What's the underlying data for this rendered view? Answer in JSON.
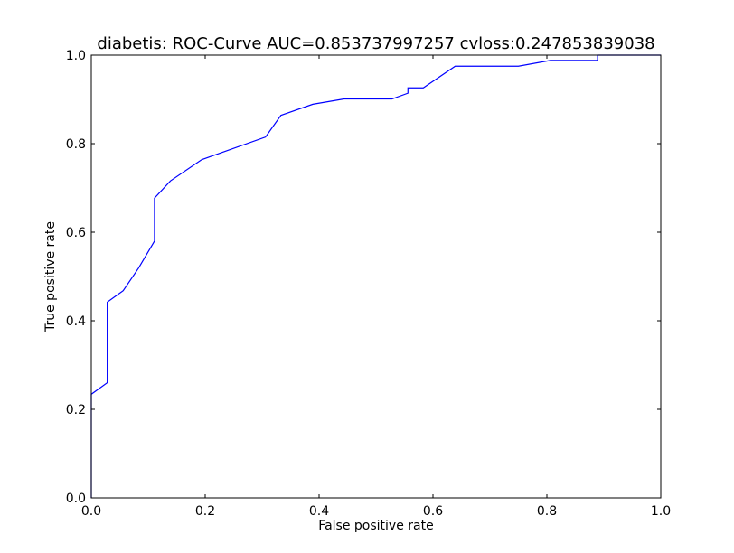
{
  "chart_data": {
    "type": "line",
    "title": "diabetis: ROC-Curve AUC=0.853737997257 cvloss:0.247853839038",
    "xlabel": "False positive rate",
    "ylabel": "True positive rate",
    "xlim": [
      0.0,
      1.0
    ],
    "ylim": [
      0.0,
      1.0
    ],
    "xticks": [
      "0.0",
      "0.2",
      "0.4",
      "0.6",
      "0.8",
      "1.0"
    ],
    "yticks": [
      "0.0",
      "0.2",
      "0.4",
      "0.6",
      "0.8",
      "1.0"
    ],
    "grid": false,
    "series": [
      {
        "color": "#0000ff",
        "x": [
          0.0,
          0.0,
          0.028,
          0.028,
          0.056,
          0.083,
          0.111,
          0.111,
          0.139,
          0.194,
          0.306,
          0.333,
          0.389,
          0.444,
          0.528,
          0.556,
          0.556,
          0.583,
          0.639,
          0.75,
          0.806,
          0.889,
          0.889,
          1.0
        ],
        "y": [
          0.0,
          0.234,
          0.26,
          0.442,
          0.468,
          0.519,
          0.58,
          0.677,
          0.716,
          0.764,
          0.815,
          0.864,
          0.889,
          0.901,
          0.901,
          0.914,
          0.926,
          0.926,
          0.975,
          0.975,
          0.988,
          0.988,
          1.0,
          1.0
        ]
      }
    ]
  }
}
